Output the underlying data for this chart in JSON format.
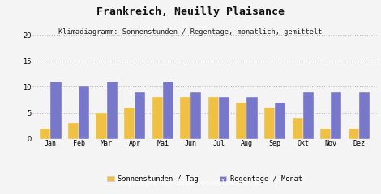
{
  "title": "Frankreich, Neuilly Plaisance",
  "subtitle": "Klimadiagramm: Sonnenstunden / Regentage, monatlich, gemittelt",
  "months": [
    "Jan",
    "Feb",
    "Mar",
    "Apr",
    "Mai",
    "Jun",
    "Jul",
    "Aug",
    "Sep",
    "Okt",
    "Nov",
    "Dez"
  ],
  "sonnenstunden": [
    2,
    3,
    5,
    6,
    8,
    8,
    8,
    7,
    6,
    4,
    2,
    2
  ],
  "regentage": [
    11,
    10,
    11,
    9,
    11,
    9,
    8,
    8,
    7,
    9,
    9,
    9
  ],
  "bar_color_sonnen": "#f0c040",
  "bar_color_regen": "#7777cc",
  "background_color": "#f4f4f4",
  "plot_bg_color": "#f4f4f4",
  "grid_color": "#bbbbbb",
  "copyright_bg": "#aaaaaa",
  "ylim": [
    0,
    20
  ],
  "yticks": [
    0,
    5,
    10,
    15,
    20
  ],
  "legend_label_sonnen": "Sonnenstunden / Tag",
  "legend_label_regen": "Regentage / Monat",
  "copyright": "Copyright (C) 2010 sonnenlaender.de",
  "title_fontsize": 9.5,
  "subtitle_fontsize": 6.2,
  "axis_fontsize": 6.0,
  "legend_fontsize": 6.2,
  "copyright_fontsize": 6.0
}
